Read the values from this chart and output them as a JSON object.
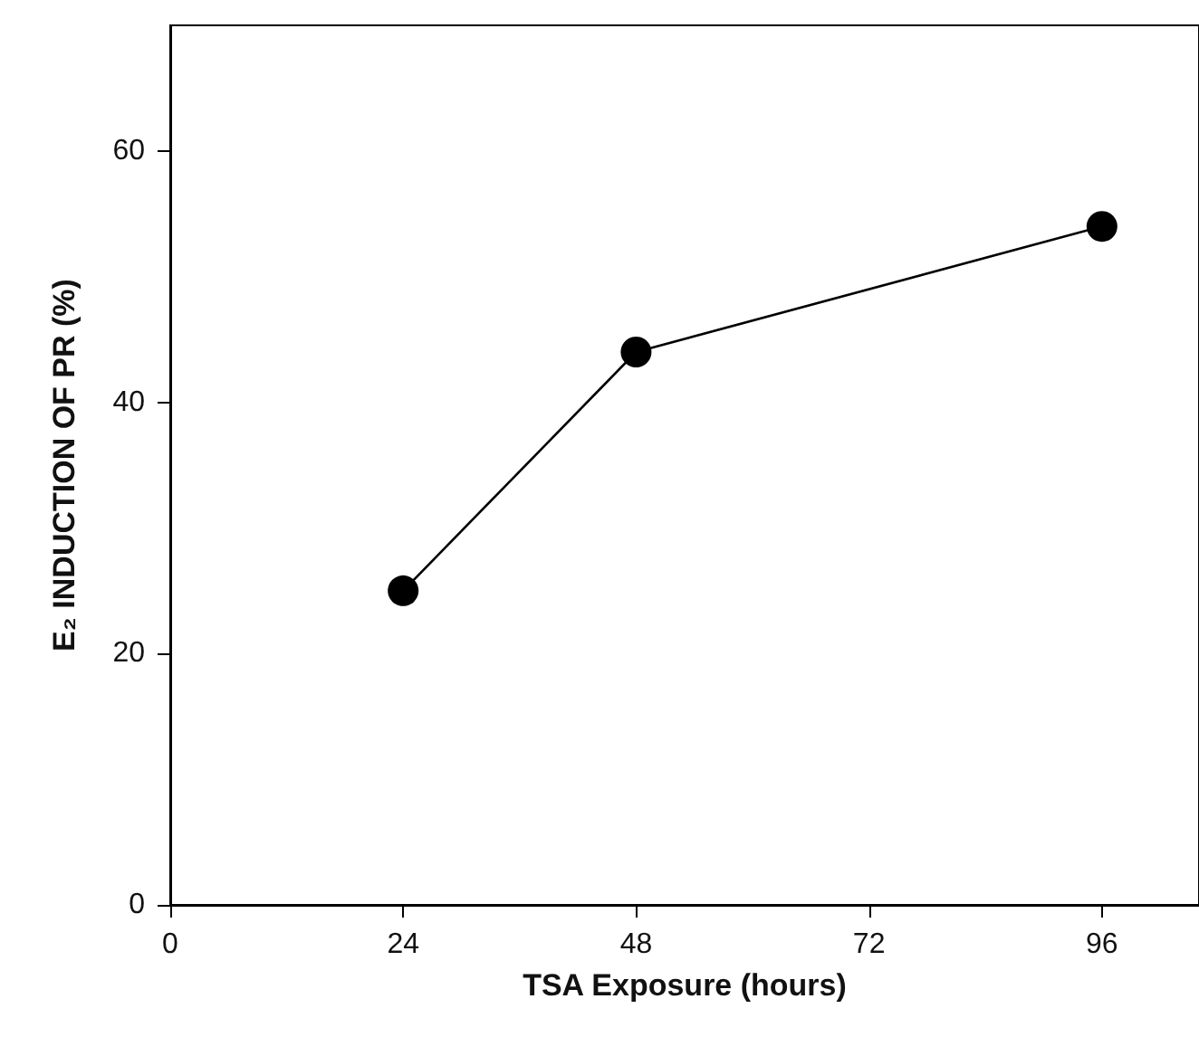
{
  "chart_data": {
    "type": "line",
    "xlabel": "TSA Exposure (hours)",
    "ylabel": "E₂ INDUCTION OF PR (%)",
    "x": [
      24,
      48,
      96
    ],
    "series": [
      {
        "color": "#000000",
        "values": [
          25,
          44,
          54
        ]
      }
    ],
    "xlim": [
      0,
      106
    ],
    "xticks": [
      0,
      24,
      48,
      72,
      96
    ],
    "ylim": [
      0,
      70
    ],
    "yticks": [
      0,
      20,
      40,
      60
    ],
    "marker": "circle",
    "line_style": "solid",
    "grid": false
  }
}
